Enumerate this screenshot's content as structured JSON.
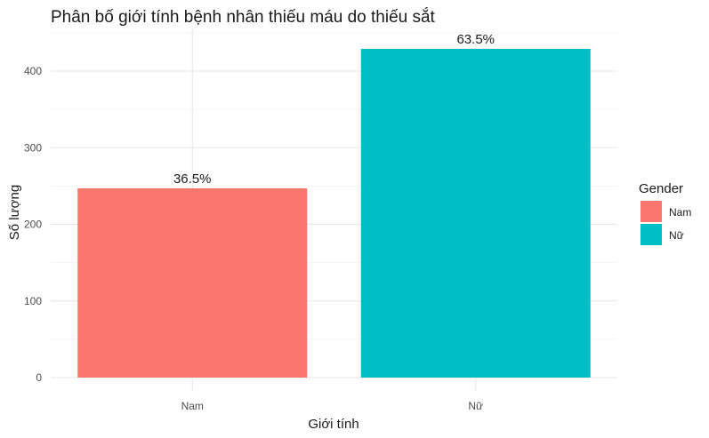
{
  "chart_data": {
    "type": "bar",
    "title": "Phân bố giới tính bệnh nhân thiếu máu do thiếu sắt",
    "xlabel": "Giới tính",
    "ylabel": "Số lượng",
    "categories": [
      "Nam",
      "Nữ"
    ],
    "values": [
      247,
      429
    ],
    "bar_labels": [
      "36.5%",
      "63.5%"
    ],
    "colors": [
      "#F8766D",
      "#00BFC4"
    ],
    "ylim": [
      0,
      450
    ],
    "yticks": [
      0,
      100,
      200,
      300,
      400
    ],
    "grid": true,
    "legend": {
      "title": "Gender",
      "position": "right",
      "items": [
        {
          "label": "Nam",
          "color": "#F8766D"
        },
        {
          "label": "Nữ",
          "color": "#00BFC4"
        }
      ]
    }
  }
}
